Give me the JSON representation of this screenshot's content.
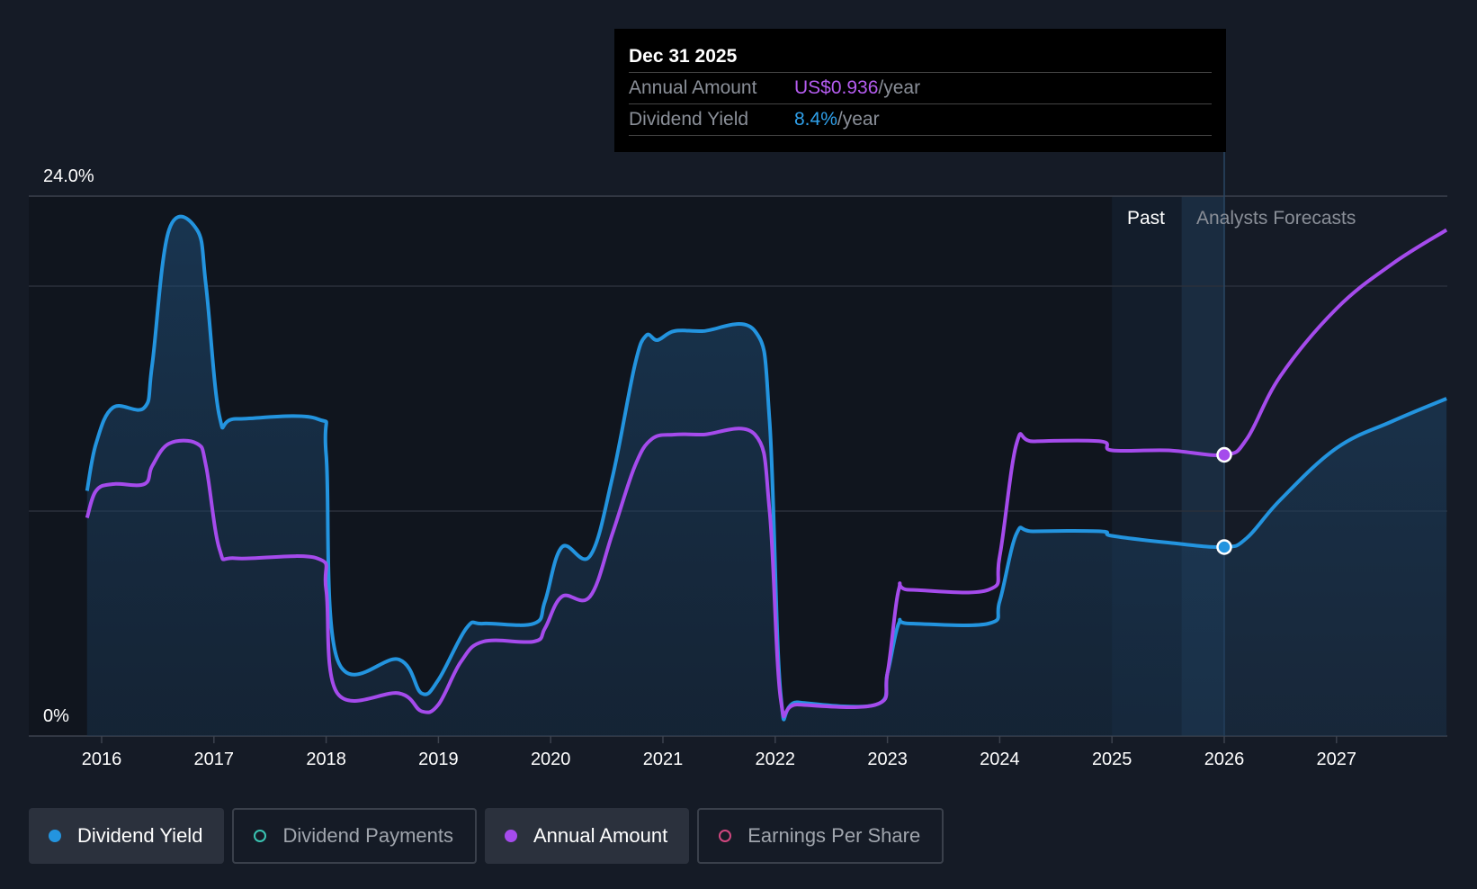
{
  "chart_data": {
    "type": "line",
    "x_ticks": [
      "2016",
      "2017",
      "2018",
      "2019",
      "2020",
      "2021",
      "2022",
      "2023",
      "2024",
      "2025",
      "2026",
      "2027"
    ],
    "y_ticks": [
      {
        "value": 24.0,
        "label": "24.0%"
      },
      {
        "value": 0,
        "label": "0%"
      }
    ],
    "ylim": [
      0,
      24
    ],
    "xlim": [
      2015.65,
      2027.98
    ],
    "grid": true,
    "past_label": "Past",
    "forecast_label": "Analysts Forecasts",
    "past_end": 2026.0,
    "series": [
      {
        "name": "Dividend Yield",
        "color": "#2394df",
        "fill": true,
        "points": [
          [
            2015.87,
            10.9
          ],
          [
            2015.95,
            13.0
          ],
          [
            2016.1,
            14.6
          ],
          [
            2016.38,
            14.6
          ],
          [
            2016.45,
            16.5
          ],
          [
            2016.6,
            22.5
          ],
          [
            2016.85,
            22.5
          ],
          [
            2016.93,
            20.0
          ],
          [
            2017.05,
            14.2
          ],
          [
            2017.2,
            14.1
          ],
          [
            2017.92,
            14.1
          ],
          [
            2018.0,
            12.5
          ],
          [
            2018.1,
            3.4
          ],
          [
            2018.65,
            3.4
          ],
          [
            2018.85,
            1.9
          ],
          [
            2019.0,
            2.5
          ],
          [
            2019.25,
            4.8
          ],
          [
            2019.4,
            5.0
          ],
          [
            2019.85,
            5.0
          ],
          [
            2019.95,
            6.0
          ],
          [
            2020.1,
            8.4
          ],
          [
            2020.35,
            8.0
          ],
          [
            2020.55,
            11.5
          ],
          [
            2020.75,
            16.5
          ],
          [
            2020.85,
            17.8
          ],
          [
            2020.95,
            17.6
          ],
          [
            2021.1,
            18.0
          ],
          [
            2021.35,
            18.0
          ],
          [
            2021.82,
            18.0
          ],
          [
            2021.95,
            14.0
          ],
          [
            2022.05,
            1.8
          ],
          [
            2022.2,
            1.5
          ],
          [
            2022.9,
            1.4
          ],
          [
            2023.0,
            2.8
          ],
          [
            2023.1,
            5.0
          ],
          [
            2023.2,
            5.0
          ],
          [
            2023.9,
            5.0
          ],
          [
            2024.0,
            6.0
          ],
          [
            2024.15,
            9.0
          ],
          [
            2024.3,
            9.1
          ],
          [
            2024.9,
            9.1
          ],
          [
            2025.0,
            8.9
          ],
          [
            2025.5,
            8.6
          ],
          [
            2026.0,
            8.4
          ],
          [
            2026.2,
            8.8
          ],
          [
            2026.5,
            10.5
          ],
          [
            2027.0,
            12.8
          ],
          [
            2027.5,
            14.0
          ],
          [
            2027.98,
            15.0
          ]
        ]
      },
      {
        "name": "Annual Amount",
        "color": "#a54bec",
        "fill": false,
        "points": [
          [
            2015.87,
            9.7
          ],
          [
            2015.95,
            10.9
          ],
          [
            2016.1,
            11.2
          ],
          [
            2016.38,
            11.2
          ],
          [
            2016.45,
            12.0
          ],
          [
            2016.6,
            13.0
          ],
          [
            2016.85,
            13.0
          ],
          [
            2016.93,
            12.0
          ],
          [
            2017.05,
            8.3
          ],
          [
            2017.2,
            7.9
          ],
          [
            2017.92,
            7.9
          ],
          [
            2018.0,
            6.5
          ],
          [
            2018.1,
            1.9
          ],
          [
            2018.65,
            1.9
          ],
          [
            2018.85,
            1.1
          ],
          [
            2019.0,
            1.4
          ],
          [
            2019.2,
            3.3
          ],
          [
            2019.4,
            4.2
          ],
          [
            2019.85,
            4.2
          ],
          [
            2019.95,
            4.8
          ],
          [
            2020.1,
            6.2
          ],
          [
            2020.35,
            6.2
          ],
          [
            2020.55,
            9.0
          ],
          [
            2020.75,
            12.0
          ],
          [
            2020.9,
            13.2
          ],
          [
            2021.1,
            13.4
          ],
          [
            2021.35,
            13.4
          ],
          [
            2021.82,
            13.4
          ],
          [
            2021.95,
            10.0
          ],
          [
            2022.05,
            1.6
          ],
          [
            2022.2,
            1.4
          ],
          [
            2022.9,
            1.4
          ],
          [
            2023.0,
            2.8
          ],
          [
            2023.1,
            6.5
          ],
          [
            2023.2,
            6.5
          ],
          [
            2023.9,
            6.5
          ],
          [
            2024.0,
            8.0
          ],
          [
            2024.15,
            13.0
          ],
          [
            2024.3,
            13.1
          ],
          [
            2024.9,
            13.1
          ],
          [
            2025.0,
            12.7
          ],
          [
            2025.5,
            12.7
          ],
          [
            2026.0,
            12.5
          ],
          [
            2026.2,
            13.2
          ],
          [
            2026.5,
            16.0
          ],
          [
            2027.0,
            19.0
          ],
          [
            2027.5,
            21.0
          ],
          [
            2027.98,
            22.5
          ]
        ]
      }
    ],
    "markers": [
      {
        "series": "Dividend Yield",
        "x": 2026.0,
        "y": 8.4
      },
      {
        "series": "Annual Amount",
        "x": 2026.0,
        "y": 12.5
      }
    ]
  },
  "tooltip": {
    "date": "Dec 31 2025",
    "rows": [
      {
        "label": "Annual Amount",
        "value": "US$0.936",
        "unit": "/year",
        "color": "#b55cf0"
      },
      {
        "label": "Dividend Yield",
        "value": "8.4%",
        "unit": "/year",
        "color": "#2fa0ea"
      }
    ]
  },
  "legend": [
    {
      "label": "Dividend Yield",
      "color": "#2394df",
      "active": true,
      "hollow": false
    },
    {
      "label": "Dividend Payments",
      "color": "#3ac4b2",
      "active": false,
      "hollow": true
    },
    {
      "label": "Annual Amount",
      "color": "#a54bec",
      "active": true,
      "hollow": false
    },
    {
      "label": "Earnings Per Share",
      "color": "#d1477f",
      "active": false,
      "hollow": true
    }
  ]
}
